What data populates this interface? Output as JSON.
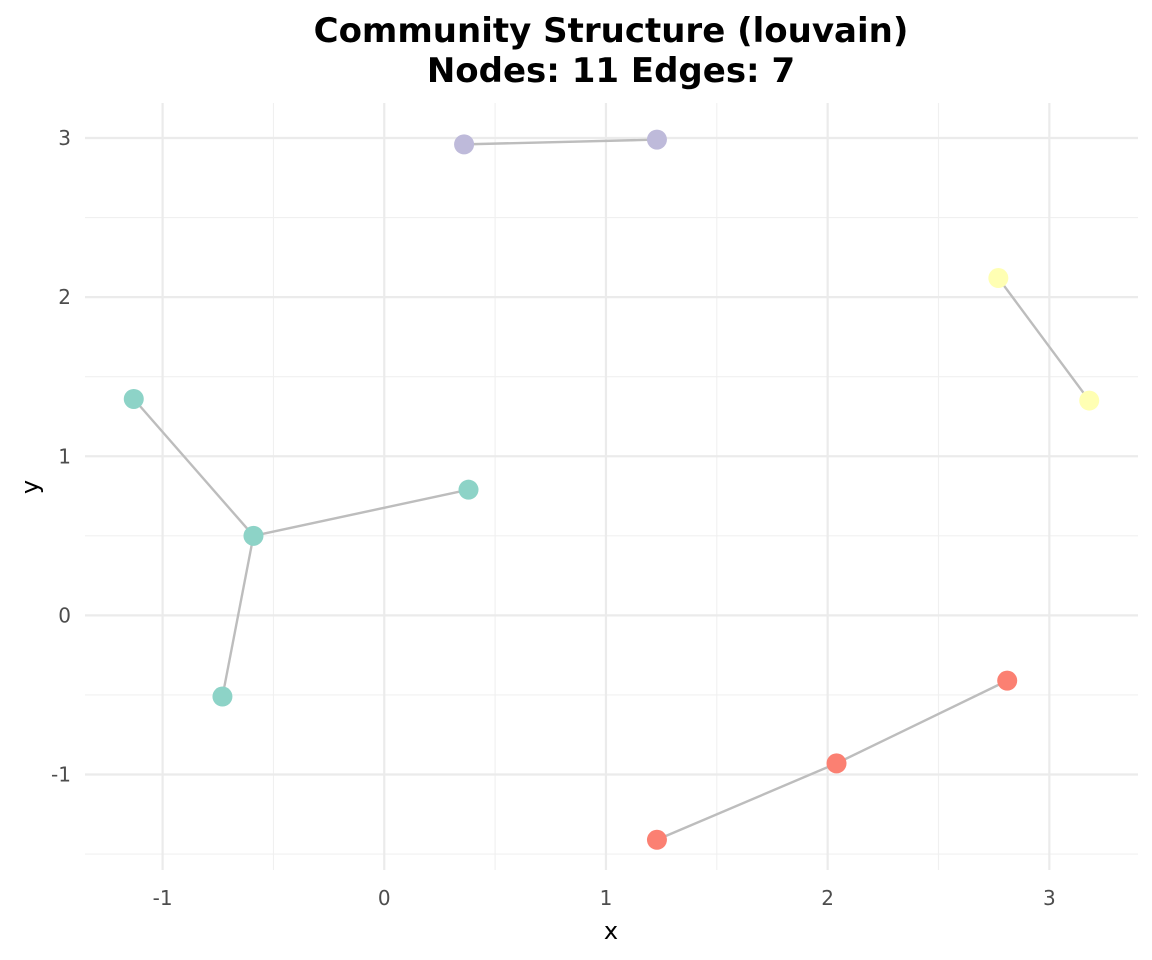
{
  "chart_data": {
    "type": "scatter",
    "subtype": "network-graph",
    "title": "Community Structure (louvain)",
    "subtitle": "Nodes: 11 Edges: 7",
    "xlabel": "x",
    "ylabel": "y",
    "xlim": [
      -1.35,
      3.4
    ],
    "ylim": [
      -1.6,
      3.22
    ],
    "x_ticks": [
      -1,
      0,
      1,
      2,
      3
    ],
    "y_ticks": [
      -1,
      0,
      1,
      2,
      3
    ],
    "x_tick_labels": [
      "-1",
      "0",
      "1",
      "2",
      "3"
    ],
    "y_tick_labels": [
      "-1",
      "0",
      "1",
      "2",
      "3"
    ],
    "grid": true,
    "legend": "none",
    "edge_color": "#bdbdbd",
    "communities": [
      {
        "id": 1,
        "color": "#8dd3c7"
      },
      {
        "id": 2,
        "color": "#bebada"
      },
      {
        "id": 3,
        "color": "#ffffb3"
      },
      {
        "id": 4,
        "color": "#fb8072"
      }
    ],
    "nodes": [
      {
        "id": "n1",
        "x": -1.13,
        "y": 1.36,
        "community": 1
      },
      {
        "id": "n2",
        "x": -0.59,
        "y": 0.5,
        "community": 1
      },
      {
        "id": "n3",
        "x": 0.38,
        "y": 0.79,
        "community": 1
      },
      {
        "id": "n4",
        "x": -0.73,
        "y": -0.51,
        "community": 1
      },
      {
        "id": "n5",
        "x": 0.36,
        "y": 2.96,
        "community": 2
      },
      {
        "id": "n6",
        "x": 1.23,
        "y": 2.99,
        "community": 2
      },
      {
        "id": "n7",
        "x": 2.77,
        "y": 2.12,
        "community": 3
      },
      {
        "id": "n8",
        "x": 3.18,
        "y": 1.35,
        "community": 3
      },
      {
        "id": "n9",
        "x": 1.23,
        "y": -1.41,
        "community": 4
      },
      {
        "id": "n10",
        "x": 2.04,
        "y": -0.93,
        "community": 4
      },
      {
        "id": "n11",
        "x": 2.81,
        "y": -0.41,
        "community": 4
      }
    ],
    "edges": [
      [
        "n1",
        "n2"
      ],
      [
        "n2",
        "n3"
      ],
      [
        "n2",
        "n4"
      ],
      [
        "n5",
        "n6"
      ],
      [
        "n7",
        "n8"
      ],
      [
        "n9",
        "n10"
      ],
      [
        "n10",
        "n11"
      ]
    ]
  }
}
